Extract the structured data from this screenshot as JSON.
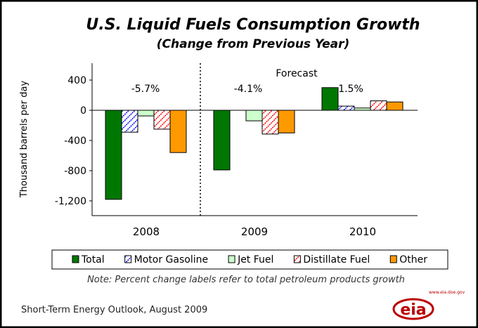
{
  "chart_data": {
    "type": "bar",
    "title": "U.S. Liquid Fuels Consumption Growth",
    "subtitle": "(Change from Previous Year)",
    "ylabel": "Thousand barrels per day",
    "xlabel": "",
    "ylim": [
      -1400,
      600
    ],
    "yticks": [
      400,
      0,
      -400,
      -800,
      -1200
    ],
    "ytick_labels": [
      "400",
      "0",
      "-400",
      "-800",
      "-1,200"
    ],
    "categories": [
      "2008",
      "2009",
      "2010"
    ],
    "series": [
      {
        "name": "Total",
        "color": "#007700",
        "pattern": "solid",
        "values": [
          -1180,
          -790,
          300
        ]
      },
      {
        "name": "Motor Gasoline",
        "color": "#0000ff",
        "pattern": "hatch",
        "values": [
          -290,
          0,
          55
        ]
      },
      {
        "name": "Jet Fuel",
        "color": "#ccffcc",
        "pattern": "solid",
        "values": [
          -75,
          -140,
          30
        ]
      },
      {
        "name": "Distillate Fuel",
        "color": "#ff0000",
        "pattern": "hatch",
        "values": [
          -250,
          -315,
          125
        ]
      },
      {
        "name": "Other",
        "color": "#ff9900",
        "pattern": "solid",
        "values": [
          -560,
          -300,
          110
        ]
      }
    ],
    "annotations": {
      "pct": [
        "-5.7%",
        "-4.1%",
        "1.5%"
      ],
      "forecast": "Forecast"
    },
    "legend_placement": "bottom",
    "grid": false
  },
  "note": "Note: Percent change labels refer to total petroleum products growth",
  "source": "Short-Term Energy Outlook, August 2009",
  "logo": {
    "text": "eia",
    "url_text": "www.eia.doe.gov"
  }
}
